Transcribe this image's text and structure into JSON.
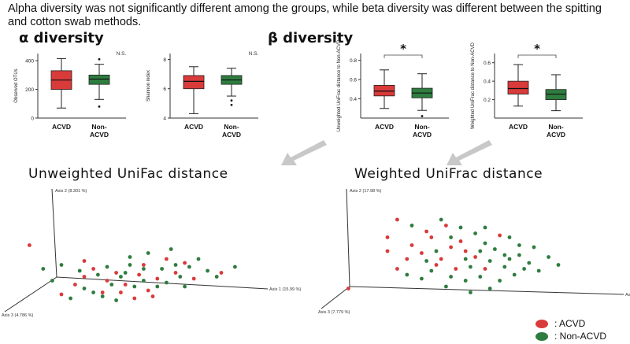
{
  "caption": "Alpha diversity was not significantly different among the groups, while beta diversity was different between the spitting and cotton swab methods.",
  "alpha_title": "α diversity",
  "beta_title": "β diversity",
  "colors": {
    "acvd": "#d93a3a",
    "non_acvd": "#2e7d3f"
  },
  "legend": [
    {
      "label": ": ACVD",
      "color": "#d93a3a"
    },
    {
      "label": ": Non-ACVD",
      "color": "#2e7d3f"
    }
  ],
  "chart_data": [
    {
      "type": "box",
      "id": "observed_otus",
      "ylabel": "Observed OTUs",
      "annotation": "N.S.",
      "ylim": [
        0,
        450
      ],
      "yticks": [
        0,
        200,
        400
      ],
      "categories": [
        "ACVD",
        "Non-ACVD"
      ],
      "boxes": [
        {
          "min": 70,
          "q1": 200,
          "median": 265,
          "q3": 330,
          "max": 415,
          "outliers": []
        },
        {
          "min": 130,
          "q1": 235,
          "median": 272,
          "q3": 300,
          "max": 375,
          "outliers": [
            410,
            80
          ]
        }
      ]
    },
    {
      "type": "box",
      "id": "shannon_index",
      "ylabel": "Shannon index",
      "annotation": "N.S.",
      "ylim": [
        4.0,
        8.4
      ],
      "yticks": [
        4.0,
        6.0,
        8.0
      ],
      "categories": [
        "ACVD",
        "Non-ACVD"
      ],
      "boxes": [
        {
          "min": 4.3,
          "q1": 6.0,
          "median": 6.5,
          "q3": 6.9,
          "max": 7.5,
          "outliers": []
        },
        {
          "min": 5.5,
          "q1": 6.3,
          "median": 6.6,
          "q3": 6.9,
          "max": 7.4,
          "outliers": [
            5.2,
            4.9
          ]
        }
      ]
    },
    {
      "type": "box",
      "id": "unweighted_unifrac",
      "ylabel": "Unweighted UniFrac distance to Non-ACVD",
      "annotation": "*",
      "ylim": [
        0.2,
        0.87
      ],
      "yticks": [
        0.4,
        0.6,
        0.8
      ],
      "categories": [
        "ACVD",
        "Non-ACVD"
      ],
      "boxes": [
        {
          "min": 0.3,
          "q1": 0.43,
          "median": 0.48,
          "q3": 0.54,
          "max": 0.7,
          "outliers": []
        },
        {
          "min": 0.28,
          "q1": 0.41,
          "median": 0.46,
          "q3": 0.51,
          "max": 0.66,
          "outliers": [
            0.22
          ]
        }
      ]
    },
    {
      "type": "box",
      "id": "weighted_unifrac",
      "ylabel": "Weighted UniFrac distance to Non-ACVD",
      "annotation": "*",
      "ylim": [
        0.0,
        0.7
      ],
      "yticks": [
        0.2,
        0.4,
        0.6
      ],
      "categories": [
        "ACVD",
        "Non-ACVD"
      ],
      "boxes": [
        {
          "min": 0.13,
          "q1": 0.26,
          "median": 0.32,
          "q3": 0.4,
          "max": 0.58,
          "outliers": []
        },
        {
          "min": 0.08,
          "q1": 0.2,
          "median": 0.26,
          "q3": 0.31,
          "max": 0.47,
          "outliers": []
        }
      ]
    },
    {
      "type": "scatter",
      "id": "unweighted_pcoa",
      "title": "Unweighted UniFac distance",
      "axis_labels": [
        "Axis 2 (8.301 %)",
        "Axis 1 (15.99 %)",
        "Axis 3 (4.786 %)"
      ],
      "series": [
        {
          "name": "ACVD",
          "points": [
            [
              0.06,
              0.38
            ],
            [
              0.3,
              0.54
            ],
            [
              0.48,
              0.78
            ],
            [
              0.56,
              0.58
            ],
            [
              0.62,
              0.72
            ],
            [
              0.44,
              0.66
            ],
            [
              0.38,
              0.86
            ],
            [
              0.26,
              0.78
            ],
            [
              0.52,
              0.92
            ],
            [
              0.7,
              0.66
            ],
            [
              0.78,
              0.72
            ],
            [
              0.34,
              0.62
            ],
            [
              0.58,
              0.84
            ],
            [
              0.66,
              0.52
            ],
            [
              0.46,
              0.86
            ],
            [
              0.3,
              0.7
            ],
            [
              0.74,
              0.56
            ],
            [
              0.4,
              0.74
            ],
            [
              0.54,
              0.68
            ],
            [
              0.6,
              0.9
            ],
            [
              0.2,
              0.88
            ],
            [
              0.9,
              0.66
            ]
          ]
        },
        {
          "name": "Non-ACVD",
          "points": [
            [
              0.12,
              0.62
            ],
            [
              0.2,
              0.58
            ],
            [
              0.28,
              0.64
            ],
            [
              0.36,
              0.68
            ],
            [
              0.4,
              0.6
            ],
            [
              0.46,
              0.7
            ],
            [
              0.5,
              0.58
            ],
            [
              0.56,
              0.74
            ],
            [
              0.64,
              0.62
            ],
            [
              0.7,
              0.58
            ],
            [
              0.72,
              0.7
            ],
            [
              0.8,
              0.52
            ],
            [
              0.84,
              0.64
            ],
            [
              0.68,
              0.42
            ],
            [
              0.58,
              0.46
            ],
            [
              0.5,
              0.5
            ],
            [
              0.42,
              0.78
            ],
            [
              0.34,
              0.86
            ],
            [
              0.24,
              0.92
            ],
            [
              0.44,
              0.94
            ],
            [
              0.52,
              0.8
            ],
            [
              0.62,
              0.8
            ],
            [
              0.76,
              0.6
            ],
            [
              0.88,
              0.7
            ],
            [
              0.3,
              0.82
            ],
            [
              0.16,
              0.74
            ],
            [
              0.96,
              0.6
            ],
            [
              0.66,
              0.76
            ],
            [
              0.38,
              0.9
            ],
            [
              0.56,
              0.62
            ],
            [
              0.48,
              0.66
            ],
            [
              0.74,
              0.8
            ]
          ]
        }
      ]
    },
    {
      "type": "scatter",
      "id": "weighted_pcoa",
      "title": "Weighted UniFrac distance",
      "axis_labels": [
        "Axis 2 (17.98 %)",
        "Axis 1 (29.15 %)",
        "Axis 3 (7.779 %)"
      ],
      "series": [
        {
          "name": "ACVD",
          "points": [
            [
              0.24,
              0.12
            ],
            [
              0.36,
              0.24
            ],
            [
              0.2,
              0.44
            ],
            [
              0.28,
              0.52
            ],
            [
              0.34,
              0.46
            ],
            [
              0.46,
              0.4
            ],
            [
              0.4,
              0.58
            ],
            [
              0.5,
              0.34
            ],
            [
              0.56,
              0.5
            ],
            [
              0.3,
              0.38
            ],
            [
              0.44,
              0.18
            ],
            [
              0.38,
              0.3
            ],
            [
              0.6,
              0.62
            ],
            [
              0.52,
              0.44
            ],
            [
              0.24,
              0.62
            ],
            [
              0.42,
              0.52
            ],
            [
              0.04,
              0.82
            ],
            [
              0.66,
              0.28
            ],
            [
              0.48,
              0.62
            ],
            [
              0.2,
              0.3
            ]
          ]
        },
        {
          "name": "Non-ACVD",
          "points": [
            [
              0.3,
              0.18
            ],
            [
              0.42,
              0.12
            ],
            [
              0.5,
              0.2
            ],
            [
              0.56,
              0.26
            ],
            [
              0.6,
              0.36
            ],
            [
              0.64,
              0.42
            ],
            [
              0.7,
              0.3
            ],
            [
              0.74,
              0.48
            ],
            [
              0.78,
              0.56
            ],
            [
              0.68,
              0.6
            ],
            [
              0.62,
              0.54
            ],
            [
              0.54,
              0.6
            ],
            [
              0.8,
              0.4
            ],
            [
              0.86,
              0.5
            ],
            [
              0.72,
              0.68
            ],
            [
              0.66,
              0.74
            ],
            [
              0.58,
              0.7
            ],
            [
              0.52,
              0.74
            ],
            [
              0.46,
              0.7
            ],
            [
              0.38,
              0.64
            ],
            [
              0.34,
              0.72
            ],
            [
              0.76,
              0.62
            ],
            [
              0.82,
              0.64
            ],
            [
              0.9,
              0.58
            ],
            [
              0.58,
              0.44
            ],
            [
              0.46,
              0.3
            ],
            [
              0.52,
              0.52
            ],
            [
              0.68,
              0.48
            ],
            [
              0.74,
              0.38
            ],
            [
              0.4,
              0.44
            ],
            [
              0.36,
              0.54
            ],
            [
              0.28,
              0.68
            ],
            [
              0.62,
              0.82
            ],
            [
              0.54,
              0.86
            ],
            [
              0.7,
              0.52
            ],
            [
              0.44,
              0.8
            ],
            [
              0.6,
              0.2
            ]
          ]
        }
      ]
    }
  ]
}
